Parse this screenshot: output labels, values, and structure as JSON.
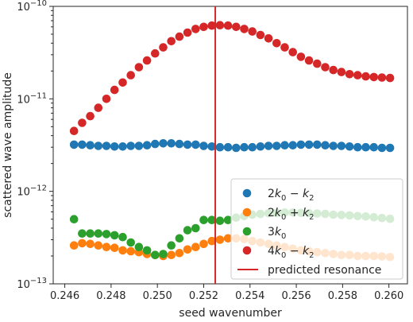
{
  "chart_data": {
    "type": "scatter",
    "xlabel": "seed wavenumber",
    "ylabel": "scattered wave amplitude",
    "xlim": [
      0.2455,
      0.2608
    ],
    "ylim": [
      1e-13,
      1e-10
    ],
    "yscale": "log",
    "x_ticks": [
      0.246,
      0.248,
      0.25,
      0.252,
      0.254,
      0.256,
      0.258,
      0.26
    ],
    "x_tick_labels": [
      "0.246",
      "0.248",
      "0.250",
      "0.252",
      "0.254",
      "0.256",
      "0.258",
      "0.260"
    ],
    "y_ticks": [
      {
        "value": 1e-13,
        "base": "10",
        "exp": "−13"
      },
      {
        "value": 1e-12,
        "base": "10",
        "exp": "−12"
      },
      {
        "value": 1e-11,
        "base": "10",
        "exp": "−11"
      },
      {
        "value": 1e-10,
        "base": "10",
        "exp": "−10"
      }
    ],
    "grid": false,
    "legend_position": "lower-right",
    "x": [
      0.2464,
      0.24675,
      0.2471,
      0.24745,
      0.2478,
      0.24815,
      0.2485,
      0.24885,
      0.2492,
      0.24955,
      0.2499,
      0.25025,
      0.2506,
      0.25095,
      0.2513,
      0.25165,
      0.252,
      0.25235,
      0.2527,
      0.25305,
      0.2534,
      0.25375,
      0.2541,
      0.25445,
      0.2548,
      0.25515,
      0.2555,
      0.25585,
      0.2562,
      0.25655,
      0.2569,
      0.25725,
      0.2576,
      0.25795,
      0.2583,
      0.25865,
      0.259,
      0.25935,
      0.2597,
      0.26005
    ],
    "series": [
      {
        "name": "2k0 − k2",
        "label_parts": [
          "2",
          "k",
          "0",
          " − ",
          "k",
          "2"
        ],
        "color": "#1f77b4",
        "values": [
          3.2e-12,
          3.2e-12,
          3.15e-12,
          3.1e-12,
          3.1e-12,
          3.05e-12,
          3.05e-12,
          3.1e-12,
          3.1e-12,
          3.15e-12,
          3.25e-12,
          3.3e-12,
          3.3e-12,
          3.25e-12,
          3.2e-12,
          3.2e-12,
          3.1e-12,
          3.05e-12,
          3e-12,
          3e-12,
          2.95e-12,
          3e-12,
          3e-12,
          3.05e-12,
          3.1e-12,
          3.1e-12,
          3.15e-12,
          3.15e-12,
          3.2e-12,
          3.2e-12,
          3.2e-12,
          3.15e-12,
          3.1e-12,
          3.1e-12,
          3.05e-12,
          3e-12,
          3e-12,
          3e-12,
          2.95e-12,
          2.95e-12
        ]
      },
      {
        "name": "2k0 + k2",
        "label_parts": [
          "2",
          "k",
          "0",
          " + ",
          "k",
          "2"
        ],
        "color": "#ff7f0e",
        "values": [
          2.6e-13,
          2.75e-13,
          2.7e-13,
          2.6e-13,
          2.5e-13,
          2.45e-13,
          2.3e-13,
          2.25e-13,
          2.2e-13,
          2.1e-13,
          2.05e-13,
          2e-13,
          2.05e-13,
          2.15e-13,
          2.35e-13,
          2.5e-13,
          2.7e-13,
          2.9e-13,
          3e-13,
          3.1e-13,
          3.1e-13,
          3.05e-13,
          2.9e-13,
          2.8e-13,
          2.7e-13,
          2.6e-13,
          2.5e-13,
          2.4e-13,
          2.3e-13,
          2.25e-13,
          2.2e-13,
          2.15e-13,
          2.1e-13,
          2.05e-13,
          2.05e-13,
          2e-13,
          2e-13,
          2e-13,
          1.98e-13,
          1.95e-13
        ]
      },
      {
        "name": "3k0",
        "label_parts": [
          "3",
          "k",
          "0",
          "",
          "",
          ""
        ],
        "color": "#2ca02c",
        "values": [
          5e-13,
          3.5e-13,
          3.5e-13,
          3.5e-13,
          3.45e-13,
          3.35e-13,
          3.2e-13,
          2.8e-13,
          2.5e-13,
          2.3e-13,
          2.05e-13,
          2.1e-13,
          2.6e-13,
          3.1e-13,
          3.8e-13,
          4e-13,
          4.9e-13,
          4.9e-13,
          4.8e-13,
          4.9e-13,
          5.2e-13,
          5.4e-13,
          5.6e-13,
          5.7e-13,
          5.8e-13,
          5.85e-13,
          5.9e-13,
          5.9e-13,
          5.85e-13,
          5.8e-13,
          5.75e-13,
          5.7e-13,
          5.6e-13,
          5.55e-13,
          5.5e-13,
          5.4e-13,
          5.35e-13,
          5.25e-13,
          5.15e-13,
          5.05e-13
        ]
      },
      {
        "name": "4k0 − k2",
        "label_parts": [
          "4",
          "k",
          "0",
          " − ",
          "k",
          "2"
        ],
        "color": "#d62728",
        "values": [
          4.5e-12,
          5.5e-12,
          6.5e-12,
          8e-12,
          1e-11,
          1.25e-11,
          1.5e-11,
          1.8e-11,
          2.2e-11,
          2.6e-11,
          3.1e-11,
          3.6e-11,
          4.2e-11,
          4.7e-11,
          5.2e-11,
          5.7e-11,
          6e-11,
          6.2e-11,
          6.25e-11,
          6.2e-11,
          6e-11,
          5.7e-11,
          5.35e-11,
          4.9e-11,
          4.5e-11,
          4e-11,
          3.6e-11,
          3.2e-11,
          2.85e-11,
          2.6e-11,
          2.4e-11,
          2.2e-11,
          2.05e-11,
          1.95e-11,
          1.85e-11,
          1.8e-11,
          1.75e-11,
          1.72e-11,
          1.7e-11,
          1.68e-11
        ]
      }
    ],
    "annotation_line": {
      "name": "predicted resonance",
      "x": 0.2525,
      "color": "#d62728"
    }
  }
}
